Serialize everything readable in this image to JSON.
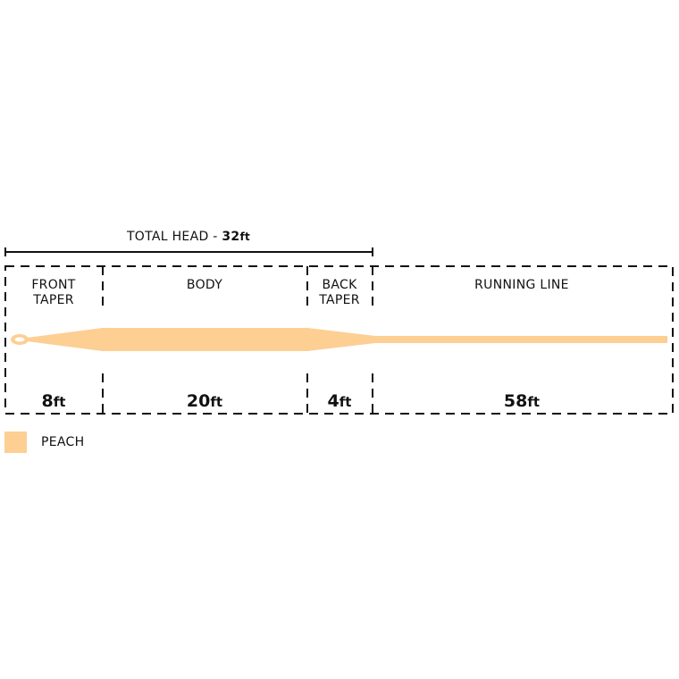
{
  "total_head": {
    "label": "TOTAL HEAD - ",
    "value": "32",
    "unit": "ft"
  },
  "sections": [
    {
      "name_line1": "FRONT",
      "name_line2": "TAPER",
      "value": "8",
      "unit": "ft"
    },
    {
      "name_line1": "BODY",
      "name_line2": "",
      "value": "20",
      "unit": "ft"
    },
    {
      "name_line1": "BACK",
      "name_line2": "TAPER",
      "value": "4",
      "unit": "ft"
    },
    {
      "name_line1": "RUNNING LINE",
      "name_line2": "",
      "value": "58",
      "unit": "ft"
    }
  ],
  "legend": {
    "label": "PEACH",
    "color": "#FDCF93"
  },
  "colors": {
    "line": "#FDCF93",
    "ink": "#111111"
  }
}
